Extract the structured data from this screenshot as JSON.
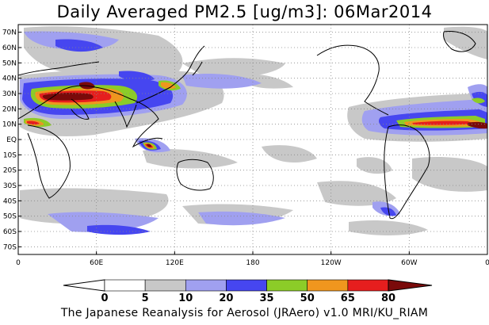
{
  "title": "Daily Averaged PM2.5 [ug/m3]: 06Mar2014",
  "footer": "The Japanese Reanalysis for Aerosol (JRAero) v1.0 MRI/KU_RIAM",
  "map": {
    "projection": "equirectangular, centered 180",
    "lon_range": [
      0,
      360
    ],
    "lat_range": [
      -75,
      75
    ],
    "lat_ticks": [
      {
        "value": 70,
        "label": "70N"
      },
      {
        "value": 60,
        "label": "60N"
      },
      {
        "value": 50,
        "label": "50N"
      },
      {
        "value": 40,
        "label": "40N"
      },
      {
        "value": 30,
        "label": "30N"
      },
      {
        "value": 20,
        "label": "20N"
      },
      {
        "value": 10,
        "label": "10N"
      },
      {
        "value": 0,
        "label": "EQ"
      },
      {
        "value": -10,
        "label": "10S"
      },
      {
        "value": -20,
        "label": "20S"
      },
      {
        "value": -30,
        "label": "30S"
      },
      {
        "value": -40,
        "label": "40S"
      },
      {
        "value": -50,
        "label": "50S"
      },
      {
        "value": -60,
        "label": "60S"
      },
      {
        "value": -70,
        "label": "70S"
      }
    ],
    "lon_ticks": [
      {
        "value": 0,
        "label": "0"
      },
      {
        "value": 60,
        "label": "60E"
      },
      {
        "value": 120,
        "label": "120E"
      },
      {
        "value": 180,
        "label": "180"
      },
      {
        "value": 240,
        "label": "120W"
      },
      {
        "value": 300,
        "label": "60W"
      },
      {
        "value": 360,
        "label": "0"
      }
    ],
    "grid": "dotted"
  },
  "colorbar": {
    "levels": [
      "0",
      "5",
      "10",
      "20",
      "35",
      "50",
      "65",
      "80"
    ],
    "colors": [
      "#ffffff",
      "#c8c8c8",
      "#a0a0f0",
      "#4646f0",
      "#8ccc28",
      "#f0961e",
      "#e61e1e",
      "#7a0a0a"
    ]
  }
}
